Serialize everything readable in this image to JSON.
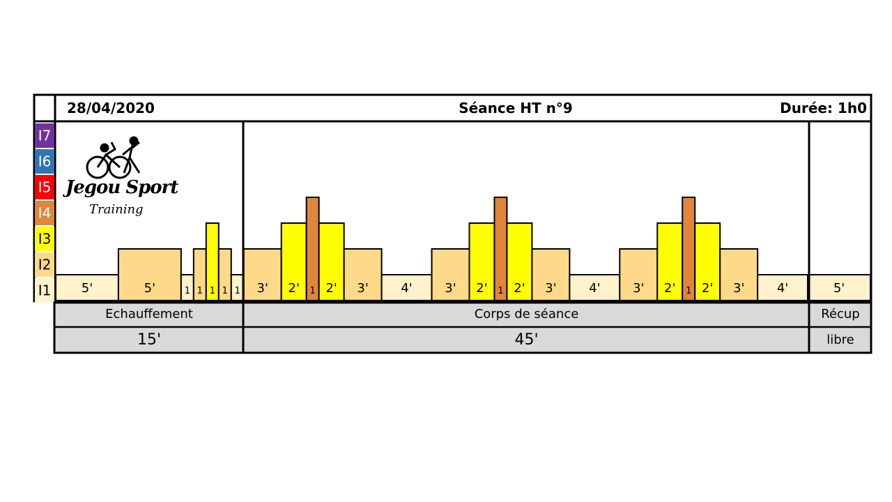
{
  "header": {
    "date": "28/04/2020",
    "title": "Séance HT n°9",
    "duration": "Durée: 1h0"
  },
  "logo": {
    "brand": "Jegou Sport",
    "subtitle": "Training",
    "icon": "cyclist-runner-icon"
  },
  "levels": [
    {
      "label": "I7",
      "color": "#7030A0"
    },
    {
      "label": "I6",
      "color": "#2E75B6"
    },
    {
      "label": "I5",
      "color": "#FF0000"
    },
    {
      "label": "I4",
      "color": "#E0853A"
    },
    {
      "label": "I3",
      "color": "#FFFF00"
    },
    {
      "label": "I2",
      "color": "#FFD98A"
    },
    {
      "label": "I1",
      "color": "#FFF2CC"
    }
  ],
  "chart_data": {
    "type": "bar",
    "x_unit": "minutes",
    "y_levels": [
      "I1",
      "I2",
      "I3",
      "I4",
      "I5",
      "I6",
      "I7"
    ],
    "segments": [
      {
        "label": "5'",
        "minutes": 5,
        "level": 1
      },
      {
        "label": "5'",
        "minutes": 5,
        "level": 2
      },
      {
        "label": "1",
        "minutes": 1,
        "level": 1
      },
      {
        "label": "1",
        "minutes": 1,
        "level": 2
      },
      {
        "label": "1",
        "minutes": 1,
        "level": 3
      },
      {
        "label": "1",
        "minutes": 1,
        "level": 2
      },
      {
        "label": "1",
        "minutes": 1,
        "level": 1
      },
      {
        "label": "3'",
        "minutes": 3,
        "level": 2
      },
      {
        "label": "2'",
        "minutes": 2,
        "level": 3
      },
      {
        "label": "1",
        "minutes": 1,
        "level": 4
      },
      {
        "label": "2'",
        "minutes": 2,
        "level": 3
      },
      {
        "label": "3'",
        "minutes": 3,
        "level": 2
      },
      {
        "label": "4'",
        "minutes": 4,
        "level": 1
      },
      {
        "label": "3'",
        "minutes": 3,
        "level": 2
      },
      {
        "label": "2'",
        "minutes": 2,
        "level": 3
      },
      {
        "label": "1",
        "minutes": 1,
        "level": 4
      },
      {
        "label": "2'",
        "minutes": 2,
        "level": 3
      },
      {
        "label": "3'",
        "minutes": 3,
        "level": 2
      },
      {
        "label": "4'",
        "minutes": 4,
        "level": 1
      },
      {
        "label": "3'",
        "minutes": 3,
        "level": 2
      },
      {
        "label": "2'",
        "minutes": 2,
        "level": 3
      },
      {
        "label": "1",
        "minutes": 1,
        "level": 4
      },
      {
        "label": "2'",
        "minutes": 2,
        "level": 3
      },
      {
        "label": "3'",
        "minutes": 3,
        "level": 2
      },
      {
        "label": "4'",
        "minutes": 4,
        "level": 1
      },
      {
        "label": "5'",
        "minutes": 5,
        "level": 1
      }
    ],
    "phases": [
      {
        "name": "Echauffement",
        "total": "15'",
        "minutes": 15
      },
      {
        "name": "Corps de séance",
        "total": "45'",
        "minutes": 45
      },
      {
        "name": "Récup",
        "total": "libre",
        "minutes": 5
      }
    ]
  }
}
